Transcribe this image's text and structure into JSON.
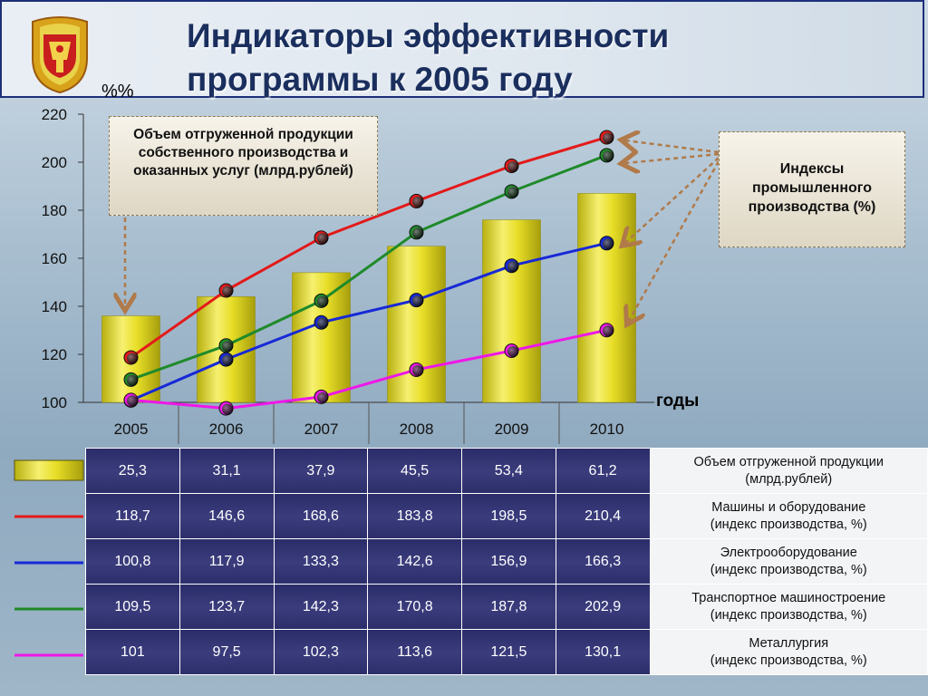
{
  "title": [
    "Индикаторы эффективности",
    "программы к 2005 году"
  ],
  "unit_label": "%%",
  "x_axis_title": "годы",
  "callout_left": "Объем отгруженной продукции собственного производства и оказанных услуг (млрд.рублей)",
  "callout_right": "Индексы промышленного производства (%)",
  "colors": {
    "bar": "#e9e22a",
    "machines": "#e31a1a",
    "electro": "#1729d6",
    "transport": "#1f8a2a",
    "metal": "#ee17e8",
    "arrow": "#b07a4a"
  },
  "chart_data": {
    "type": "bar+line",
    "categories": [
      "2005",
      "2006",
      "2007",
      "2008",
      "2009",
      "2010"
    ],
    "ylim": [
      100,
      220
    ],
    "yticks": [
      "100",
      "120",
      "140",
      "160",
      "180",
      "200",
      "220"
    ],
    "ylabel": "%%",
    "xlabel": "годы",
    "bar_heights_percent_axis": [
      136,
      144,
      154,
      165,
      176,
      187
    ],
    "series": [
      {
        "key": "machines",
        "name": "Машины и оборудование (индекс производства, %)",
        "values": [
          118.7,
          146.6,
          168.6,
          183.8,
          198.5,
          210.4
        ]
      },
      {
        "key": "electro",
        "name": "Электрооборудование (индекс производства, %)",
        "values": [
          100.8,
          117.9,
          133.3,
          142.6,
          156.9,
          166.3
        ]
      },
      {
        "key": "transport",
        "name": "Транспортное машиностроение (индекс производства, %)",
        "values": [
          109.5,
          123.7,
          142.3,
          170.8,
          187.8,
          202.9
        ]
      },
      {
        "key": "metal",
        "name": "Металлургия (индекс производства, %)",
        "values": [
          101,
          97.5,
          102.3,
          113.6,
          121.5,
          130.1
        ]
      }
    ]
  },
  "table": {
    "rows": [
      {
        "key": "bar",
        "values": [
          "25,3",
          "31,1",
          "37,9",
          "45,5",
          "53,4",
          "61,2"
        ],
        "label": [
          "Объем отгруженной продукции",
          "(млрд.рублей)"
        ]
      },
      {
        "key": "machines",
        "values": [
          "118,7",
          "146,6",
          "168,6",
          "183,8",
          "198,5",
          "210,4"
        ],
        "label": [
          "Машины и оборудование",
          "(индекс производства, %)"
        ]
      },
      {
        "key": "electro",
        "values": [
          "100,8",
          "117,9",
          "133,3",
          "142,6",
          "156,9",
          "166,3"
        ],
        "label": [
          "Электрооборудование",
          "(индекс производства, %)"
        ]
      },
      {
        "key": "transport",
        "values": [
          "109,5",
          "123,7",
          "142,3",
          "170,8",
          "187,8",
          "202,9"
        ],
        "label": [
          "Транспортное машиностроение",
          "(индекс производства, %)"
        ]
      },
      {
        "key": "metal",
        "values": [
          "101",
          "97,5",
          "102,3",
          "113,6",
          "121,5",
          "130,1"
        ],
        "label": [
          "Металлургия",
          "(индекс производства, %)"
        ]
      }
    ]
  }
}
